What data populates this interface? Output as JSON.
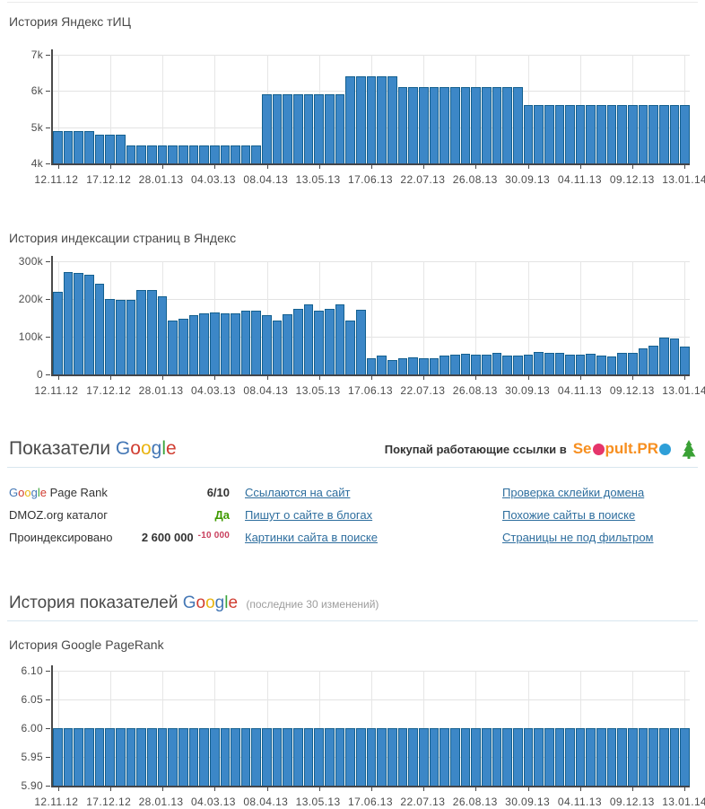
{
  "titles": {
    "chart1": "История Яндекс тИЦ",
    "chart2": "История индексации страниц в Яндекс",
    "chart3": "История Google PageRank",
    "google_section_prefix": "Показатели",
    "history_section_prefix": "История показателей",
    "history_section_suffix": "(последние 30 изменений)"
  },
  "google_word_letters": [
    {
      "ch": "G",
      "color": "#4477b5"
    },
    {
      "ch": "o",
      "color": "#d03d31"
    },
    {
      "ch": "o",
      "color": "#e9b410"
    },
    {
      "ch": "g",
      "color": "#4477b5"
    },
    {
      "ch": "l",
      "color": "#3ba53c"
    },
    {
      "ch": "e",
      "color": "#d03d31"
    }
  ],
  "banner": {
    "text": "Покупай работающие ссылки в",
    "logo_se": "Se",
    "logo_pult": "pult.PR",
    "logo_color": "#f78f20",
    "o1_color": "#e5356b",
    "o2_color": "#2e9fd8",
    "tree_color": "#3aa135"
  },
  "table": {
    "rows": [
      {
        "label_google": true,
        "label_rest": " Page Rank",
        "value": "6/10",
        "value_color": "#333333",
        "delta": "",
        "delta_color": "#c9405e",
        "link1": "Ссылаются на сайт",
        "link2": "Проверка склейки домена"
      },
      {
        "label_google": false,
        "label_rest": "DMOZ.org каталог",
        "value": "Да",
        "value_color": "#3f9a00",
        "delta": "",
        "delta_color": "#c9405e",
        "link1": "Пишут о сайте в блогах",
        "link2": "Похожие сайты в поиске"
      },
      {
        "label_google": false,
        "label_rest": "Проиндексировано",
        "value": "2 600 000",
        "value_color": "#333333",
        "delta": "-10 000",
        "delta_color": "#c9405e",
        "link1": "Картинки сайта в поиске",
        "link2": "Страницы не под фильтром"
      }
    ]
  },
  "chart_data": [
    {
      "id": "yandex-tic-history",
      "type": "bar",
      "title": "История Яндекс тИЦ",
      "bar_color": "#3c87c7",
      "ylim": [
        4000,
        7000
      ],
      "yticks": [
        {
          "value": 7000,
          "label": "7k"
        },
        {
          "value": 6000,
          "label": "6k"
        },
        {
          "value": 5000,
          "label": "5k"
        },
        {
          "value": 4000,
          "label": "4k"
        }
      ],
      "x_labels": [
        "12.11.12",
        "17.12.12",
        "28.01.13",
        "04.03.13",
        "08.04.13",
        "13.05.13",
        "17.06.13",
        "22.07.13",
        "26.08.13",
        "30.09.13",
        "04.11.13",
        "09.12.13",
        "13.01.14"
      ],
      "label_every_n_bars": 5,
      "values": [
        4900,
        4900,
        4900,
        4900,
        4800,
        4800,
        4800,
        4500,
        4500,
        4500,
        4500,
        4500,
        4500,
        4500,
        4500,
        4500,
        4500,
        4500,
        4500,
        4500,
        5900,
        5900,
        5900,
        5900,
        5900,
        5900,
        5900,
        5900,
        6400,
        6400,
        6400,
        6400,
        6400,
        6100,
        6100,
        6100,
        6100,
        6100,
        6100,
        6100,
        6100,
        6100,
        6100,
        6100,
        6100,
        5600,
        5600,
        5600,
        5600,
        5600,
        5600,
        5600,
        5600,
        5600,
        5600,
        5600,
        5600,
        5600,
        5600,
        5600,
        5600
      ]
    },
    {
      "id": "yandex-indexed-pages-history",
      "type": "bar",
      "title": "История индексации страниц в Яндекс",
      "bar_color": "#3c87c7",
      "ylim": [
        0,
        300000
      ],
      "yticks": [
        {
          "value": 300000,
          "label": "300k"
        },
        {
          "value": 200000,
          "label": "200k"
        },
        {
          "value": 100000,
          "label": "100k"
        },
        {
          "value": 0,
          "label": "0"
        }
      ],
      "x_labels": [
        "12.11.12",
        "17.12.12",
        "28.01.13",
        "04.03.13",
        "08.04.13",
        "13.05.13",
        "17.06.13",
        "22.07.13",
        "26.08.13",
        "30.09.13",
        "04.11.13",
        "09.12.13",
        "13.01.14"
      ],
      "label_every_n_bars": 5,
      "values": [
        220000,
        272000,
        270000,
        265000,
        240000,
        201000,
        198000,
        198000,
        223000,
        223000,
        208000,
        143000,
        148000,
        157000,
        163000,
        165000,
        162000,
        163000,
        168000,
        168000,
        156000,
        143000,
        159000,
        174000,
        185000,
        168000,
        174000,
        185000,
        142000,
        172000,
        42000,
        49000,
        39000,
        44000,
        46000,
        42000,
        42000,
        49000,
        53000,
        55000,
        52000,
        53000,
        56000,
        50000,
        50000,
        53000,
        60000,
        56000,
        57000,
        53000,
        53000,
        54000,
        50000,
        48000,
        58000,
        58000,
        70000,
        77000,
        97000,
        95000,
        75000
      ]
    },
    {
      "id": "google-pagerank-history",
      "type": "bar",
      "title": "История Google PageRank",
      "bar_color": "#3c87c7",
      "ylim": [
        5.9,
        6.1
      ],
      "yticks": [
        {
          "value": 6.1,
          "label": "6.10"
        },
        {
          "value": 6.05,
          "label": "6.05"
        },
        {
          "value": 6.0,
          "label": "6.00"
        },
        {
          "value": 5.95,
          "label": "5.95"
        },
        {
          "value": 5.9,
          "label": "5.90"
        }
      ],
      "x_labels": [
        "12.11.12",
        "17.12.12",
        "28.01.13",
        "04.03.13",
        "08.04.13",
        "13.05.13",
        "17.06.13",
        "22.07.13",
        "26.08.13",
        "30.09.13",
        "04.11.13",
        "09.12.13",
        "13.01.14"
      ],
      "label_every_n_bars": 5,
      "values": [
        6,
        6,
        6,
        6,
        6,
        6,
        6,
        6,
        6,
        6,
        6,
        6,
        6,
        6,
        6,
        6,
        6,
        6,
        6,
        6,
        6,
        6,
        6,
        6,
        6,
        6,
        6,
        6,
        6,
        6,
        6,
        6,
        6,
        6,
        6,
        6,
        6,
        6,
        6,
        6,
        6,
        6,
        6,
        6,
        6,
        6,
        6,
        6,
        6,
        6,
        6,
        6,
        6,
        6,
        6,
        6,
        6,
        6,
        6,
        6,
        6
      ]
    }
  ]
}
